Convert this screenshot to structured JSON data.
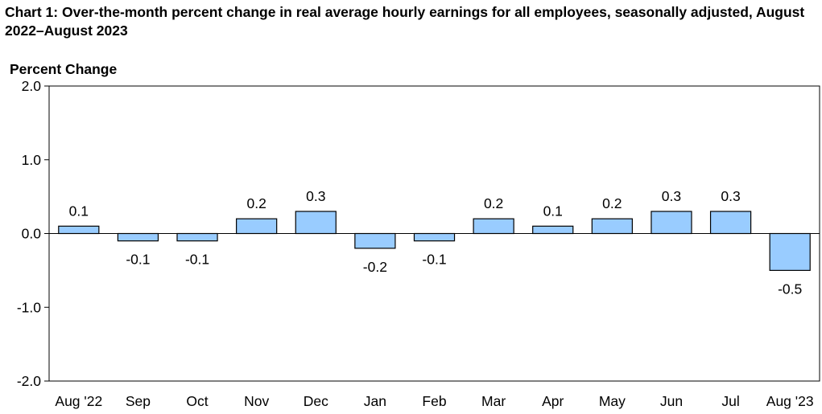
{
  "chart_title": "Chart 1: Over-the-month percent change in real average hourly earnings for all employees, seasonally adjusted, August 2022–August 2023",
  "chart_data": {
    "type": "bar",
    "title": "Chart 1: Over-the-month percent change in real average hourly earnings for all employees, seasonally adjusted, August 2022–August 2023",
    "ylabel": "Percent Change",
    "xlabel": "",
    "categories": [
      "Aug '22",
      "Sep",
      "Oct",
      "Nov",
      "Dec",
      "Jan",
      "Feb",
      "Mar",
      "Apr",
      "May",
      "Jun",
      "Jul",
      "Aug '23"
    ],
    "values": [
      0.1,
      -0.1,
      -0.1,
      0.2,
      0.3,
      -0.2,
      -0.1,
      0.2,
      0.1,
      0.2,
      0.3,
      0.3,
      -0.5
    ],
    "data_labels": [
      "0.1",
      "-0.1",
      "-0.1",
      "0.2",
      "0.3",
      "-0.2",
      "-0.1",
      "0.2",
      "0.1",
      "0.2",
      "0.3",
      "0.3",
      "-0.5"
    ],
    "ylim": [
      -2.0,
      2.0
    ],
    "yticks": [
      2.0,
      1.0,
      0.0,
      -1.0,
      -2.0
    ],
    "ytick_labels": [
      "2.0",
      "1.0",
      "0.0",
      "-1.0",
      "-2.0"
    ],
    "grid": false,
    "legend": "none",
    "bar_color": "#99ccff",
    "bar_stroke": "#000000"
  }
}
